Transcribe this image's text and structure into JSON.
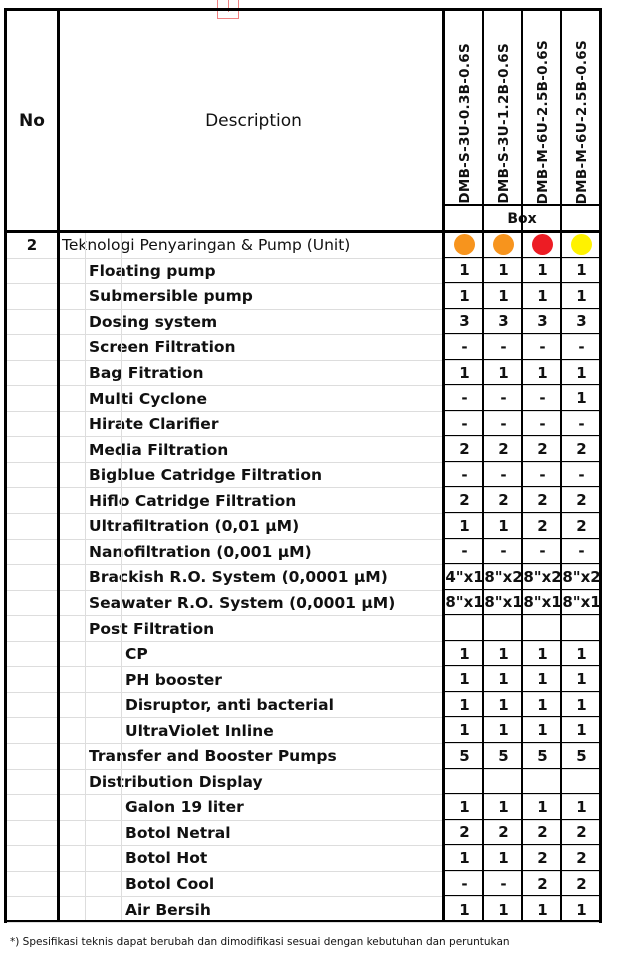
{
  "header": {
    "no": "No",
    "description": "Description",
    "models": [
      "DMB-S-3U-0.3B-0.6S",
      "DMB-S-3U-1.2B-0.6S",
      "DMB-M-6U-2.5B-0.6S",
      "DMB-M-6U-2.5B-0.6S"
    ],
    "group": "Box"
  },
  "colors": {
    "orange": "#f7941d",
    "red": "#ed1c24",
    "yellow": "#fff200"
  },
  "rows": [
    {
      "no": "2",
      "label": "Teknologi Penyaringan & Pump (Unit)",
      "level": 0,
      "dots": [
        "#f7941d",
        "#f7941d",
        "#ed1c24",
        "#fff200"
      ]
    },
    {
      "label": "Floating pump",
      "level": 1,
      "values": [
        "1",
        "1",
        "1",
        "1"
      ]
    },
    {
      "label": "Submersible pump",
      "level": 1,
      "values": [
        "1",
        "1",
        "1",
        "1"
      ]
    },
    {
      "label": "Dosing system",
      "level": 1,
      "values": [
        "3",
        "3",
        "3",
        "3"
      ]
    },
    {
      "label": "Screen Filtration",
      "level": 1,
      "values": [
        "-",
        "-",
        "-",
        "-"
      ]
    },
    {
      "label": "Bag Fitration",
      "level": 1,
      "values": [
        "1",
        "1",
        "1",
        "1"
      ]
    },
    {
      "label": "Multi Cyclone",
      "level": 1,
      "values": [
        "-",
        "-",
        "-",
        "1"
      ]
    },
    {
      "label": "Hirate Clarifier",
      "level": 1,
      "values": [
        "-",
        "-",
        "-",
        "-"
      ]
    },
    {
      "label": "Media Filtration",
      "level": 1,
      "values": [
        "2",
        "2",
        "2",
        "2"
      ]
    },
    {
      "label": "Bigblue Catridge Filtration",
      "level": 1,
      "values": [
        "-",
        "-",
        "-",
        "-"
      ]
    },
    {
      "label": "Hiflo Catridge Filtration",
      "level": 1,
      "values": [
        "2",
        "2",
        "2",
        "2"
      ]
    },
    {
      "label": "Ultrafiltration (0,01 µM)",
      "level": 1,
      "values": [
        "1",
        "1",
        "2",
        "2"
      ]
    },
    {
      "label": "Nanofiltration (0,001 µM)",
      "level": 1,
      "values": [
        "-",
        "-",
        "-",
        "-"
      ]
    },
    {
      "label": "Brackish R.O. System (0,0001 µM)",
      "level": 1,
      "values": [
        "4\"x1",
        "8\"x2",
        "8\"x2",
        "8\"x2"
      ]
    },
    {
      "label": "Seawater R.O. System (0,0001 µM)",
      "level": 1,
      "values": [
        "8\"x1",
        "8\"x1",
        "8\"x1",
        "8\"x1"
      ]
    },
    {
      "label": "Post Filtration",
      "level": 1,
      "values": [
        "",
        "",
        "",
        ""
      ]
    },
    {
      "label": "CP",
      "level": 2,
      "values": [
        "1",
        "1",
        "1",
        "1"
      ]
    },
    {
      "label": "PH booster",
      "level": 2,
      "values": [
        "1",
        "1",
        "1",
        "1"
      ]
    },
    {
      "label": "Disruptor, anti bacterial",
      "level": 2,
      "values": [
        "1",
        "1",
        "1",
        "1"
      ]
    },
    {
      "label": "UltraViolet Inline",
      "level": 2,
      "values": [
        "1",
        "1",
        "1",
        "1"
      ]
    },
    {
      "label": "Transfer and Booster Pumps",
      "level": 1,
      "values": [
        "5",
        "5",
        "5",
        "5"
      ]
    },
    {
      "label": "Distribution Display",
      "level": 1,
      "values": [
        "",
        "",
        "",
        ""
      ]
    },
    {
      "label": "Galon 19 liter",
      "level": 2,
      "values": [
        "1",
        "1",
        "1",
        "1"
      ]
    },
    {
      "label": "Botol Netral",
      "level": 2,
      "values": [
        "2",
        "2",
        "2",
        "2"
      ]
    },
    {
      "label": "Botol Hot",
      "level": 2,
      "values": [
        "1",
        "1",
        "2",
        "2"
      ]
    },
    {
      "label": "Botol Cool",
      "level": 2,
      "values": [
        "-",
        "-",
        "2",
        "2"
      ]
    },
    {
      "label": "Air Bersih",
      "level": 2,
      "values": [
        "1",
        "1",
        "1",
        "1"
      ]
    }
  ],
  "footnote": "*)  Spesifikasi teknis dapat berubah dan dimodifikasi sesuai dengan kebutuhan dan peruntukan"
}
